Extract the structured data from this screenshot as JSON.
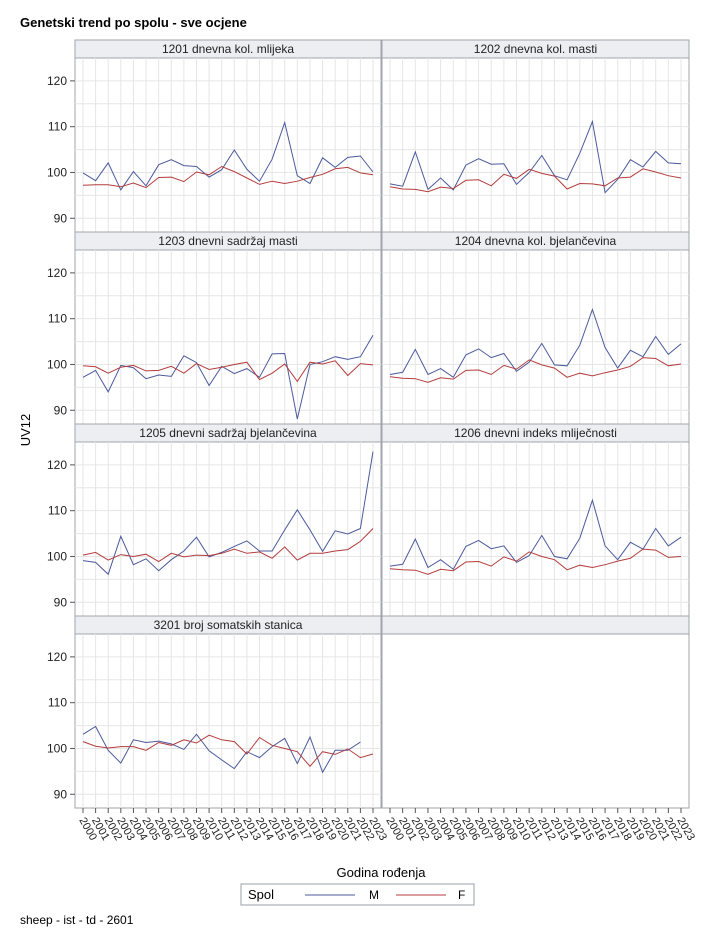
{
  "figure": {
    "title": "Genetski trend po spolu - sve ocjene",
    "footnote": "sheep - ist - td - 2601",
    "xlabel": "Godina rođenja",
    "ylabel": "UV12",
    "legend_title": "Spol",
    "legend_placement": "bottom-center",
    "series_colors": {
      "M": "#4b5a9c",
      "F": "#b43c3c"
    }
  },
  "chart_data": {
    "type": "line",
    "layout": "panel-grid",
    "x": [
      "2000",
      "2001",
      "2002",
      "2003",
      "2004",
      "2005",
      "2006",
      "2007",
      "2008",
      "2009",
      "2010",
      "2011",
      "2012",
      "2013",
      "2014",
      "2015",
      "2016",
      "2017",
      "2018",
      "2019",
      "2020",
      "2021",
      "2022",
      "2023"
    ],
    "ylim": [
      87,
      125
    ],
    "yticks": [
      90,
      100,
      110,
      120
    ],
    "grid": true,
    "series_names": [
      "M",
      "F"
    ],
    "panels": [
      {
        "title": "1201 dnevna kol. mlijeka",
        "series": [
          {
            "name": "M",
            "values": [
              99.9,
              98.2,
              102.1,
              96.2,
              100.2,
              97.1,
              101.7,
              102.8,
              101.5,
              101.3,
              99.0,
              100.6,
              104.9,
              100.7,
              98.1,
              102.9,
              110.9,
              99.3,
              97.6,
              103.2,
              101.1,
              103.3,
              103.6,
              100.1
            ]
          },
          {
            "name": "F",
            "values": [
              97.2,
              97.3,
              97.3,
              96.9,
              97.7,
              96.7,
              98.9,
              99.0,
              98.0,
              100.1,
              99.5,
              101.3,
              100.2,
              98.8,
              97.4,
              98.1,
              97.6,
              98.1,
              98.9,
              99.6,
              100.8,
              101.1,
              99.9,
              99.5
            ]
          }
        ]
      },
      {
        "title": "1202 dnevna kol. masti",
        "series": [
          {
            "name": "M",
            "values": [
              97.5,
              97.0,
              104.5,
              96.3,
              98.8,
              96.2,
              101.6,
              103.0,
              101.8,
              101.9,
              97.4,
              100.0,
              103.7,
              99.3,
              98.4,
              104.2,
              111.1,
              95.6,
              98.5,
              102.8,
              101.2,
              104.6,
              102.1,
              101.9
            ]
          },
          {
            "name": "F",
            "values": [
              96.9,
              96.4,
              96.3,
              95.8,
              96.8,
              96.5,
              98.3,
              98.4,
              97.1,
              99.6,
              98.7,
              100.7,
              99.8,
              99.2,
              96.4,
              97.6,
              97.5,
              97.1,
              98.8,
              99.0,
              100.8,
              100.1,
              99.3,
              98.8
            ]
          }
        ]
      },
      {
        "title": "1203 dnevni sadržaj masti",
        "series": [
          {
            "name": "M",
            "values": [
              97.2,
              98.7,
              94.0,
              99.8,
              99.3,
              96.9,
              97.7,
              97.4,
              101.9,
              100.4,
              95.4,
              99.6,
              98.0,
              99.1,
              97.2,
              102.3,
              102.4,
              88.1,
              100.0,
              100.6,
              101.7,
              101.1,
              101.7,
              106.4
            ]
          },
          {
            "name": "F",
            "values": [
              99.7,
              99.5,
              98.1,
              99.4,
              99.8,
              98.6,
              98.7,
              99.6,
              98.1,
              100.2,
              98.9,
              99.4,
              100.0,
              100.5,
              96.7,
              98.1,
              100.1,
              96.3,
              100.5,
              100.1,
              100.8,
              97.6,
              100.2,
              99.9
            ]
          }
        ]
      },
      {
        "title": "1204 dnevna kol. bjelančevina",
        "series": [
          {
            "name": "M",
            "values": [
              97.8,
              98.3,
              103.3,
              97.8,
              99.1,
              97.2,
              102.1,
              103.4,
              101.5,
              102.4,
              98.5,
              100.5,
              104.6,
              99.9,
              99.7,
              104.2,
              112.0,
              103.7,
              99.2,
              103.1,
              101.7,
              106.1,
              102.2,
              104.5
            ]
          },
          {
            "name": "F",
            "values": [
              97.3,
              97.0,
              96.9,
              96.1,
              97.1,
              96.8,
              98.7,
              98.8,
              97.8,
              99.8,
              99.0,
              101.0,
              99.9,
              99.2,
              97.2,
              98.1,
              97.5,
              98.2,
              98.8,
              99.6,
              101.5,
              101.3,
              99.7,
              100.1
            ]
          }
        ]
      },
      {
        "title": "1205 dnevni sadržaj bjelančevina",
        "series": [
          {
            "name": "M",
            "values": [
              99.1,
              98.7,
              96.1,
              104.4,
              98.2,
              99.5,
              96.9,
              99.3,
              101.2,
              104.2,
              99.9,
              100.9,
              102.2,
              103.4,
              101.2,
              101.2,
              105.8,
              110.2,
              105.8,
              101.1,
              105.6,
              104.9,
              106.1,
              122.9
            ]
          },
          {
            "name": "F",
            "values": [
              100.3,
              100.9,
              99.2,
              100.4,
              100.0,
              100.5,
              98.9,
              100.7,
              99.9,
              100.3,
              100.2,
              100.7,
              101.6,
              100.7,
              101.0,
              99.6,
              102.1,
              99.2,
              100.7,
              100.7,
              101.2,
              101.5,
              103.3,
              106.1
            ]
          }
        ]
      },
      {
        "title": "1206 dnevni indeks mliječnosti",
        "series": [
          {
            "name": "M",
            "values": [
              97.9,
              98.3,
              103.8,
              97.6,
              99.3,
              97.2,
              102.2,
              103.5,
              101.7,
              102.3,
              98.7,
              100.2,
              104.6,
              100.0,
              99.5,
              104.0,
              112.3,
              102.3,
              99.3,
              103.1,
              101.6,
              106.1,
              102.3,
              104.2
            ]
          },
          {
            "name": "F",
            "values": [
              97.3,
              97.1,
              97.0,
              96.1,
              97.2,
              96.9,
              98.8,
              98.9,
              97.9,
              99.9,
              99.0,
              101.0,
              100.0,
              99.3,
              97.1,
              98.1,
              97.6,
              98.2,
              99.0,
              99.6,
              101.6,
              101.4,
              99.8,
              100.0
            ]
          }
        ]
      },
      {
        "title": "3201 broj somatskih stanica",
        "series": [
          {
            "name": "M",
            "values": [
              103.1,
              104.8,
              99.6,
              96.8,
              101.9,
              101.3,
              101.6,
              101.0,
              99.8,
              103.1,
              99.5,
              97.5,
              95.6,
              99.3,
              98.0,
              100.4,
              102.2,
              96.7,
              102.5,
              94.8,
              99.6,
              99.6,
              101.4,
              null
            ]
          },
          {
            "name": "F",
            "values": [
              101.5,
              100.5,
              100.1,
              100.4,
              100.4,
              99.6,
              101.3,
              100.7,
              101.9,
              101.2,
              102.9,
              101.9,
              101.5,
              98.8,
              102.4,
              100.7,
              100.0,
              99.3,
              96.1,
              99.3,
              98.7,
              99.9,
              98.0,
              98.8
            ]
          }
        ]
      }
    ]
  }
}
